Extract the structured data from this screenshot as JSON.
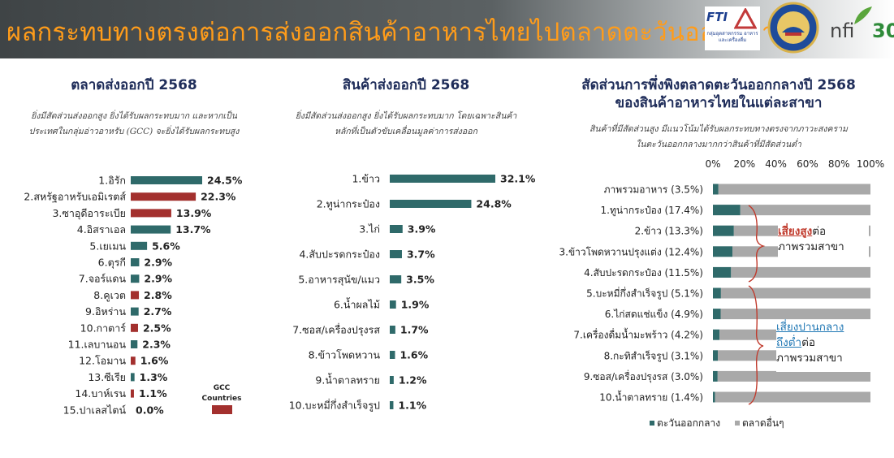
{
  "header": {
    "title": "ผลกระทบทางตรงต่อการส่งออกสินค้าอาหารไทยไปตลาดตะวันออกกลาง",
    "logo_fti": "FTI",
    "logo_fti_sub": "กลุ่มอุตสาหกรรม อาหารและเครื่องดื่ม",
    "logo_nfi": "nfi",
    "logo_nfi_num": "30",
    "colors": {
      "title": "#ff9c1a",
      "bar_start": "#3f4446"
    }
  },
  "sections": {
    "markets": {
      "title": "ตลาดส่งออกปี 2568",
      "subtitle_1": "ยิ่งมีสัดส่วนส่งออกสูง ยิ่งได้รับผลกระทบมาก และหากเป็น",
      "subtitle_2": "ประเทศในกลุ่มอ่าวอาหรับ (GCC) จะยิ่งได้รับผลกระทบสูง",
      "gcc_legend_1": "GCC",
      "gcc_legend_2": "Countries"
    },
    "products": {
      "title": "สินค้าส่งออกปี 2568",
      "subtitle_1": "ยิ่งมีสัดส่วนส่งออกสูง ยิ่งได้รับผลกระทบมาก โดยเฉพาะสินค้า",
      "subtitle_2": "หลักที่เป็นตัวขับเคลื่อนมูลค่าการส่งออก"
    },
    "dependency": {
      "title_1": "สัดส่วนการพึ่งพิงตลาดตะวันออกกลางปี 2568",
      "title_2": "ของสินค้าอาหารไทยในแต่ละสาขา",
      "subtitle_1": "สินค้าที่มีสัดส่วนสูง มีแนวโน้มได้รับผลกระทบทางตรงจากภาวะสงคราม",
      "subtitle_2": "ในตะวันออกกลางมากกว่าสินค้าที่มีสัดส่วนต่ำ",
      "high_risk_1": "เสี่ยงสูง",
      "high_risk_2": "ต่อ",
      "high_risk_3": "ภาพรวมสาขา",
      "mid_risk_1": "เสี่ยงปานกลาง",
      "mid_risk_2": "ถึงต่ำ",
      "mid_risk_3": "ต่อ",
      "mid_risk_4": "ภาพรวมสาขา"
    }
  },
  "chart_data": [
    {
      "type": "bar",
      "orientation": "horizontal",
      "title": "ตลาดส่งออกปี 2568",
      "categories": [
        "1.อิรัก",
        "2.สหรัฐอาหรับเอมิเรตส์",
        "3.ซาอุดีอาระเบีย",
        "4.อิสราเอล",
        "5.เยเมน",
        "6.ตุรกี",
        "7.จอร์แดน",
        "8.คูเวต",
        "9.อิหร่าน",
        "10.กาตาร์",
        "11.เลบานอน",
        "12.โอมาน",
        "13.ซีเรีย",
        "14.บาห์เรน",
        "15.ปาเลสไตน์"
      ],
      "values": [
        24.5,
        22.3,
        13.9,
        13.7,
        5.6,
        2.9,
        2.9,
        2.8,
        2.7,
        2.5,
        2.3,
        1.6,
        1.3,
        1.1,
        0.0
      ],
      "value_labels": [
        "24.5%",
        "22.3%",
        "13.9%",
        "13.7%",
        "5.6%",
        "2.9%",
        "2.9%",
        "2.8%",
        "2.7%",
        "2.5%",
        "2.3%",
        "1.6%",
        "1.3%",
        "1.1%",
        "0.0%"
      ],
      "gcc": [
        false,
        true,
        true,
        false,
        false,
        false,
        false,
        true,
        false,
        true,
        false,
        true,
        false,
        true,
        false
      ],
      "colors": {
        "default": "#2f6a6a",
        "gcc": "#a3302e"
      },
      "legend": [
        "GCC Countries"
      ]
    },
    {
      "type": "bar",
      "orientation": "horizontal",
      "title": "สินค้าส่งออกปี 2568",
      "categories": [
        "1.ข้าว",
        "2.ทูน่ากระป๋อง",
        "3.ไก่",
        "4.สับปะรดกระป๋อง",
        "5.อาหารสุนัข/แมว",
        "6.น้ำผลไม้",
        "7.ซอส/เครื่องปรุงรส",
        "8.ข้าวโพดหวาน",
        "9.น้ำตาลทราย",
        "10.บะหมี่กึ่งสำเร็จรูป"
      ],
      "values": [
        32.1,
        24.8,
        3.9,
        3.7,
        3.5,
        1.9,
        1.7,
        1.6,
        1.2,
        1.1
      ],
      "value_labels": [
        "32.1%",
        "24.8%",
        "3.9%",
        "3.7%",
        "3.5%",
        "1.9%",
        "1.7%",
        "1.6%",
        "1.2%",
        "1.1%"
      ],
      "colors": {
        "default": "#2f6a6a"
      }
    },
    {
      "type": "bar",
      "orientation": "horizontal",
      "stacked": true,
      "title": "สัดส่วนการพึ่งพิงตลาดตะวันออกกลางปี 2568 ของสินค้าอาหารไทยในแต่ละสาขา",
      "categories": [
        "ภาพรวมอาหาร (3.5%)",
        "1.ทูน่ากระป๋อง (17.4%)",
        "2.ข้าว (13.3%)",
        "3.ข้าวโพดหวานปรุงแต่ง (12.4%)",
        "4.สับปะรดกระป๋อง (11.5%)",
        "5.บะหมี่กึ่งสำเร็จรูป (5.1%)",
        "6.ไก่สดแช่แข็ง (4.9%)",
        "7.เครื่องดื่มน้ำมะพร้าว (4.2%)",
        "8.กะทิสำเร็จรูป (3.1%)",
        "9.ซอส/เครื่องปรุงรส (3.0%)",
        "10.น้ำตาลทราย (1.4%)"
      ],
      "series": [
        {
          "name": "ตะวันออกกลาง",
          "values": [
            3.5,
            17.4,
            13.3,
            12.4,
            11.5,
            5.1,
            4.9,
            4.2,
            3.1,
            3.0,
            1.4
          ],
          "color": "#2f6a6a"
        },
        {
          "name": "ตลาดอื่นๆ",
          "values": [
            96.5,
            82.6,
            86.7,
            87.6,
            88.5,
            94.9,
            95.1,
            95.8,
            96.9,
            97.0,
            98.6
          ],
          "color": "#a9a9a9"
        }
      ],
      "x_ticks": [
        "0%",
        "20%",
        "40%",
        "60%",
        "80%",
        "100%"
      ],
      "xlim": [
        0,
        100
      ],
      "legend": [
        "ตะวันออกกลาง",
        "ตลาดอื่นๆ"
      ],
      "legend_placement": "bottom"
    }
  ]
}
